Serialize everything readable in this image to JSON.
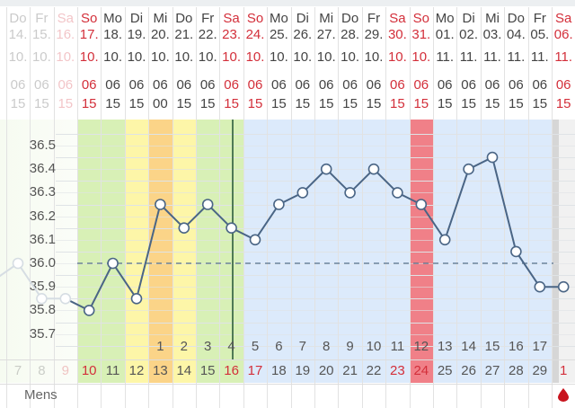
{
  "colors": {
    "green": "#d8f0b6",
    "yellow": "#fdf6a8",
    "orange": "#fbd488",
    "blue": "#dceafb",
    "red": "#f08088",
    "grey": "#f1f1f1",
    "line": "#4a6585",
    "weekend": "#d32f3a"
  },
  "y_axis": {
    "labels": [
      "36.5",
      "36.4",
      "36.3",
      "36.2",
      "36.1",
      "36.0",
      "35.9",
      "35.8",
      "35.7"
    ],
    "coverline": 36.0
  },
  "mens_label": "Mens",
  "columns": [
    {
      "weekday": "Do",
      "date": "14.",
      "month": "10.",
      "hour": "06",
      "minute": "15",
      "day": "7",
      "temp": 36.0,
      "band": "none",
      "faded": true
    },
    {
      "weekday": "Fr",
      "date": "15.",
      "month": "10.",
      "hour": "06",
      "minute": "15",
      "day": "8",
      "temp": 35.85,
      "band": "none",
      "faded": true
    },
    {
      "weekday": "Sa",
      "date": "16.",
      "month": "10.",
      "hour": "06",
      "minute": "15",
      "day": "9",
      "temp": 35.85,
      "band": "none",
      "faded": true,
      "weekend": true
    },
    {
      "weekday": "So",
      "date": "17.",
      "month": "10.",
      "hour": "06",
      "minute": "15",
      "day": "10",
      "temp": 35.8,
      "band": "green",
      "weekend": true
    },
    {
      "weekday": "Mo",
      "date": "18.",
      "month": "10.",
      "hour": "06",
      "minute": "15",
      "day": "11",
      "temp": 36.0,
      "band": "green"
    },
    {
      "weekday": "Di",
      "date": "19.",
      "month": "10.",
      "hour": "06",
      "minute": "15",
      "day": "12",
      "temp": 35.85,
      "band": "yellow"
    },
    {
      "weekday": "Mi",
      "date": "20.",
      "month": "10.",
      "hour": "06",
      "minute": "00",
      "day": "13",
      "temp": 36.25,
      "band": "orange",
      "cycle_day": "1"
    },
    {
      "weekday": "Do",
      "date": "21.",
      "month": "10.",
      "hour": "06",
      "minute": "15",
      "day": "14",
      "temp": 36.15,
      "band": "yellow",
      "cycle_day": "2"
    },
    {
      "weekday": "Fr",
      "date": "22.",
      "month": "10.",
      "hour": "06",
      "minute": "15",
      "day": "15",
      "temp": 36.25,
      "band": "green",
      "cycle_day": "3"
    },
    {
      "weekday": "Sa",
      "date": "23.",
      "month": "10.",
      "hour": "06",
      "minute": "15",
      "day": "16",
      "temp": 36.15,
      "band": "green",
      "cycle_day": "4",
      "weekend": true
    },
    {
      "weekday": "So",
      "date": "24.",
      "month": "10.",
      "hour": "06",
      "minute": "15",
      "day": "17",
      "temp": 36.1,
      "band": "blue",
      "cycle_day": "5",
      "weekend": true
    },
    {
      "weekday": "Mo",
      "date": "25.",
      "month": "10.",
      "hour": "06",
      "minute": "15",
      "day": "18",
      "temp": 36.25,
      "band": "blue",
      "cycle_day": "6"
    },
    {
      "weekday": "Di",
      "date": "26.",
      "month": "10.",
      "hour": "06",
      "minute": "15",
      "day": "19",
      "temp": 36.3,
      "band": "blue",
      "cycle_day": "7"
    },
    {
      "weekday": "Mi",
      "date": "27.",
      "month": "10.",
      "hour": "06",
      "minute": "15",
      "day": "20",
      "temp": 36.4,
      "band": "blue",
      "cycle_day": "8"
    },
    {
      "weekday": "Do",
      "date": "28.",
      "month": "10.",
      "hour": "06",
      "minute": "15",
      "day": "21",
      "temp": 36.3,
      "band": "blue",
      "cycle_day": "9"
    },
    {
      "weekday": "Fr",
      "date": "29.",
      "month": "10.",
      "hour": "06",
      "minute": "15",
      "day": "22",
      "temp": 36.4,
      "band": "blue",
      "cycle_day": "10"
    },
    {
      "weekday": "Sa",
      "date": "30.",
      "month": "10.",
      "hour": "06",
      "minute": "15",
      "day": "23",
      "temp": 36.3,
      "band": "blue",
      "cycle_day": "11",
      "weekend": true
    },
    {
      "weekday": "So",
      "date": "31.",
      "month": "10.",
      "hour": "06",
      "minute": "15",
      "day": "24",
      "temp": 36.25,
      "band": "red",
      "cycle_day": "12",
      "weekend": true
    },
    {
      "weekday": "Mo",
      "date": "01.",
      "month": "11.",
      "hour": "06",
      "minute": "15",
      "day": "25",
      "temp": 36.1,
      "band": "blue",
      "cycle_day": "13"
    },
    {
      "weekday": "Di",
      "date": "02.",
      "month": "11.",
      "hour": "06",
      "minute": "15",
      "day": "26",
      "temp": 36.4,
      "band": "blue",
      "cycle_day": "14"
    },
    {
      "weekday": "Mi",
      "date": "03.",
      "month": "11.",
      "hour": "06",
      "minute": "15",
      "day": "27",
      "temp": 36.45,
      "band": "blue",
      "cycle_day": "15"
    },
    {
      "weekday": "Do",
      "date": "04.",
      "month": "11.",
      "hour": "06",
      "minute": "15",
      "day": "28",
      "temp": 36.05,
      "band": "blue",
      "cycle_day": "16"
    },
    {
      "weekday": "Fr",
      "date": "05.",
      "month": "11.",
      "hour": "06",
      "minute": "15",
      "day": "29",
      "temp": 35.9,
      "band": "blue",
      "cycle_day": "17"
    },
    {
      "weekday": "Sa",
      "date": "06.",
      "month": "11.",
      "hour": "06",
      "minute": "15",
      "day": "1",
      "temp": 35.9,
      "band": "grey",
      "weekend": true,
      "mens": "blood-drop-icon"
    }
  ]
}
